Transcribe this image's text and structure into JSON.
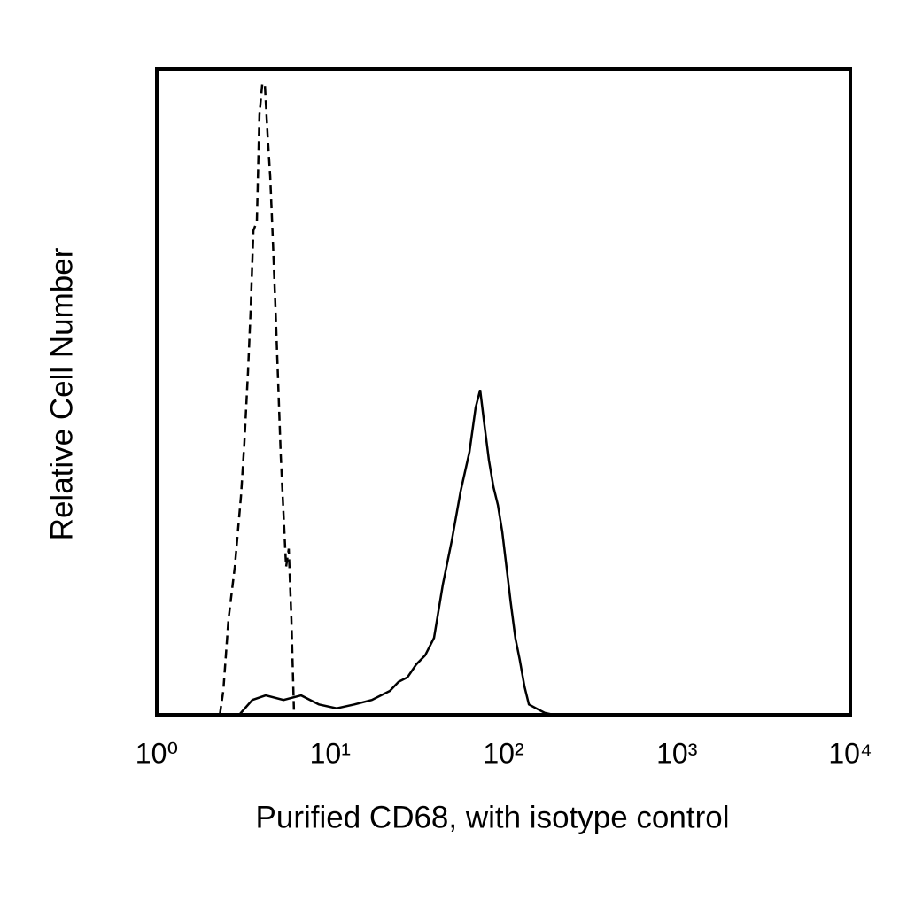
{
  "chart_data": {
    "type": "line",
    "x_label": "Purified CD68, with isotype control",
    "y_label": "Relative Cell Number",
    "xscale": "log",
    "xlim": [
      1,
      10000
    ],
    "xticks": [
      {
        "value": 1,
        "label": "10⁰"
      },
      {
        "value": 10,
        "label": "10¹"
      },
      {
        "value": 100,
        "label": "10²"
      },
      {
        "value": 1000,
        "label": "10³"
      },
      {
        "value": 10000,
        "label": "10⁴"
      }
    ],
    "ylim": [
      0,
      100
    ],
    "series": [
      {
        "color": "#000000",
        "dash": true,
        "x": [
          2.31,
          2.42,
          2.59,
          2.82,
          3.06,
          3.2,
          3.36,
          3.48,
          3.61,
          3.78,
          3.91,
          4.06,
          4.2,
          4.35,
          4.51,
          4.67,
          4.84,
          5.01,
          5.19,
          5.38,
          5.57,
          5.77,
          5.98,
          6.19
        ],
        "values": [
          0,
          3.7,
          14.7,
          22.9,
          33.9,
          42.1,
          53.1,
          62.7,
          75.0,
          76.4,
          92.9,
          97.7,
          97.7,
          90.1,
          83.3,
          73.7,
          62.7,
          51.7,
          40.1,
          31.1,
          22.9,
          25.7,
          14.7,
          0
        ]
      },
      {
        "color": "#000000",
        "dash": false,
        "x": [
          2.99,
          3.56,
          4.25,
          5.38,
          6.8,
          8.61,
          10.9,
          13.8,
          17.4,
          22.1,
          24.8,
          27.9,
          31.4,
          35.3,
          39.7,
          44.7,
          50.3,
          56.5,
          63.6,
          69.0,
          73.3,
          77.6,
          82.4,
          87.4,
          92.7,
          98.3,
          104,
          110,
          117,
          124,
          132,
          140,
          154,
          173,
          194
        ],
        "values": [
          0,
          2.3,
          3.0,
          2.3,
          3.0,
          1.6,
          1.0,
          1.6,
          2.3,
          3.7,
          5.1,
          5.8,
          7.8,
          9.2,
          11.9,
          20.2,
          27.0,
          34.6,
          40.7,
          47.6,
          50.3,
          44.9,
          39.4,
          35.3,
          32.5,
          28.4,
          22.9,
          17.4,
          11.9,
          8.5,
          4.4,
          1.6,
          1.0,
          0.3,
          0
        ]
      }
    ]
  }
}
